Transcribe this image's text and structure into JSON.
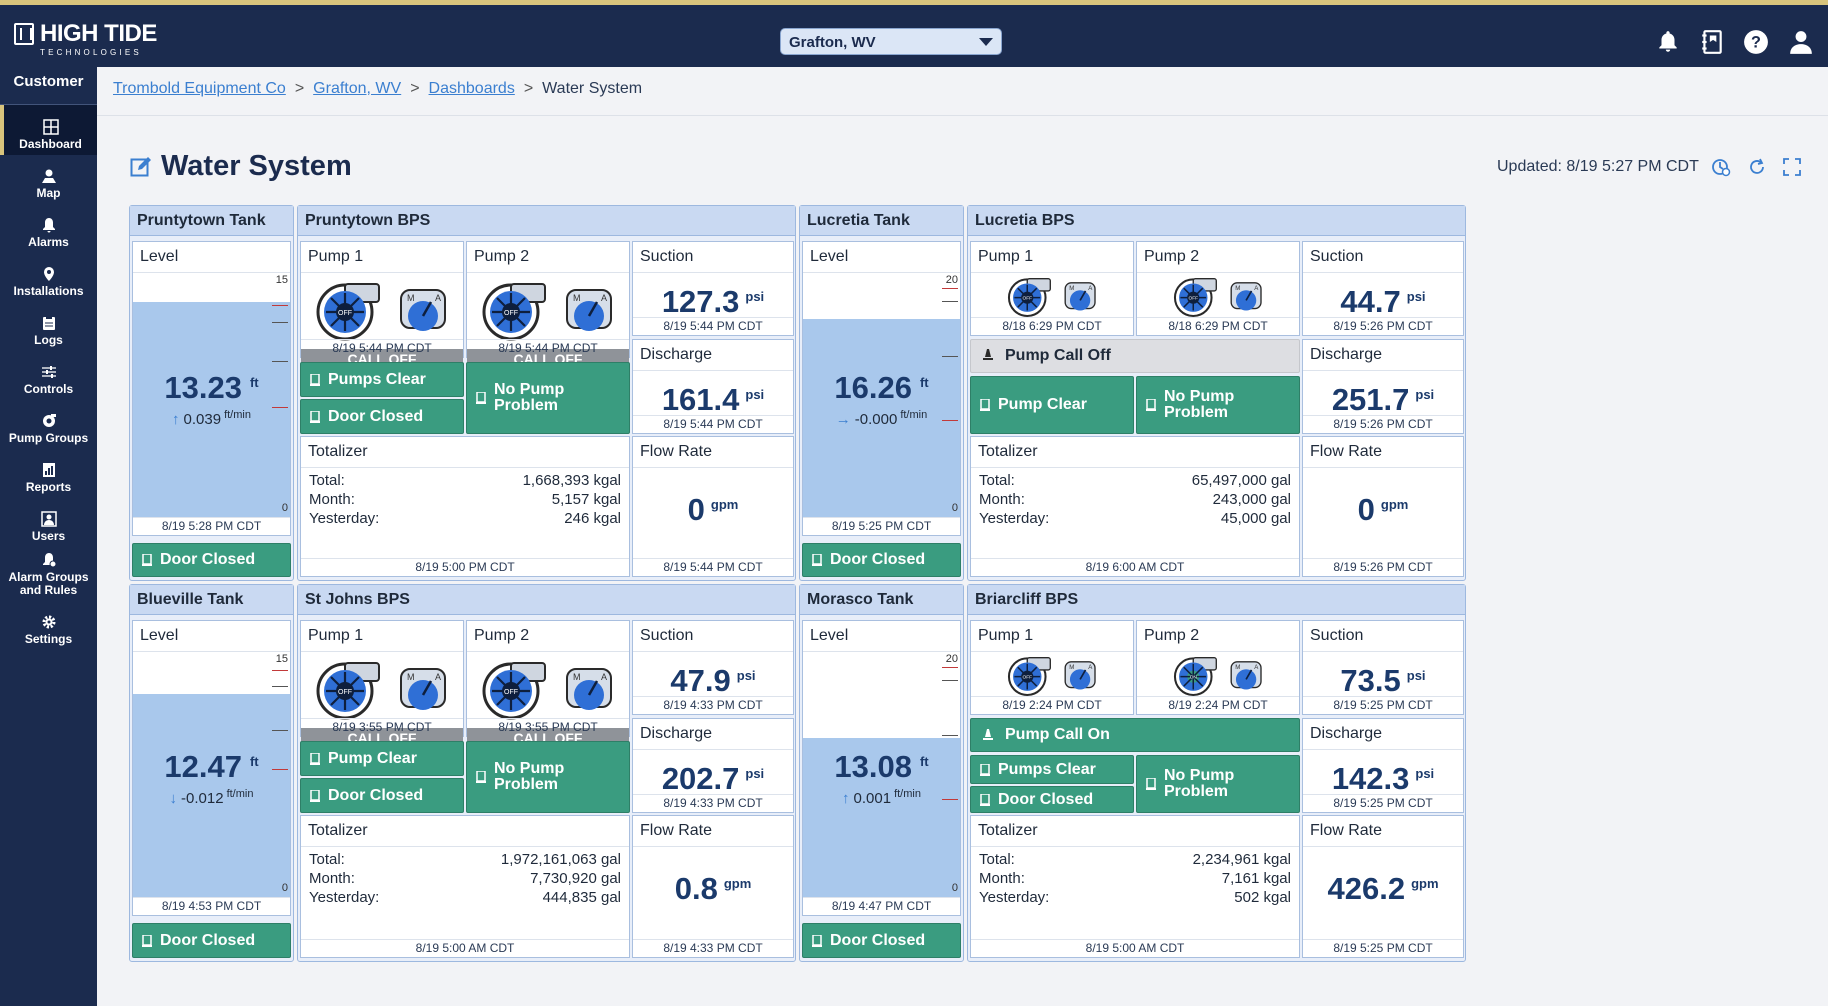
{
  "brand": {
    "name": "HIGH TIDE",
    "sub": "TECHNOLOGIES"
  },
  "location_select": {
    "value": "Grafton, WV"
  },
  "top_icons": [
    "bell-icon",
    "notebook-icon",
    "help-icon",
    "user-icon"
  ],
  "sidebar": {
    "heading": "Customer",
    "items": [
      {
        "label": "Dashboard",
        "icon": "dashboard-icon",
        "active": true
      },
      {
        "label": "Map",
        "icon": "map-icon"
      },
      {
        "label": "Alarms",
        "icon": "bell-icon"
      },
      {
        "label": "Installations",
        "icon": "pin-icon"
      },
      {
        "label": "Logs",
        "icon": "clipboard-icon"
      },
      {
        "label": "Controls",
        "icon": "sliders-icon"
      },
      {
        "label": "Pump Groups",
        "icon": "pump-group-icon"
      },
      {
        "label": "Reports",
        "icon": "report-icon"
      },
      {
        "label": "Users",
        "icon": "users-icon"
      },
      {
        "label": "Alarm Groups and Rules",
        "icon": "alarm-rules-icon"
      },
      {
        "label": "Settings",
        "icon": "gear-icon"
      }
    ]
  },
  "breadcrumb": [
    "Trombold Equipment Co",
    "Grafton, WV",
    "Dashboards",
    "Water System"
  ],
  "page": {
    "title": "Water System",
    "updated": "Updated: 8/19 5:27 PM CDT"
  },
  "labels": {
    "level": "Level",
    "pump1": "Pump 1",
    "pump2": "Pump 2",
    "suction": "Suction",
    "discharge": "Discharge",
    "totalizer": "Totalizer",
    "flow_rate": "Flow Rate",
    "total": "Total:",
    "month": "Month:",
    "yesterday": "Yesterday:",
    "call_off": "CALL OFF",
    "psi": "psi",
    "gpm": "gpm",
    "ft": "ft",
    "ftmin": "ft/min",
    "door_closed": "Door Closed"
  },
  "tanks": [
    {
      "name": "Pruntytown Tank",
      "value": "13.23",
      "rate": "0.039",
      "arrow": "↑",
      "ts": "8/19 5:28 PM CDT",
      "max": "15",
      "min": "0",
      "level_fraction": 0.88,
      "door": "Door Closed"
    },
    {
      "name": "Lucretia Tank",
      "value": "16.26",
      "rate": "-0.000",
      "arrow": "→",
      "ts": "8/19 5:25 PM CDT",
      "max": "20",
      "min": "0",
      "level_fraction": 0.81,
      "door": "Door Closed"
    },
    {
      "name": "Blueville Tank",
      "value": "12.47",
      "rate": "-0.012",
      "arrow": "↓",
      "ts": "8/19 4:53 PM CDT",
      "max": "15",
      "min": "0",
      "level_fraction": 0.83,
      "door": "Door Closed"
    },
    {
      "name": "Morasco Tank",
      "value": "13.08",
      "rate": "0.001",
      "arrow": "↑",
      "ts": "8/19 4:47 PM CDT",
      "max": "20",
      "min": "0",
      "level_fraction": 0.65,
      "door": "Door Closed"
    }
  ],
  "bps": [
    {
      "name": "Pruntytown BPS",
      "pump1": {
        "ts": "8/19 5:44 PM CDT",
        "state": "CALL OFF"
      },
      "pump2": {
        "ts": "8/19 5:44 PM CDT",
        "state": "CALL OFF"
      },
      "status_left": [
        "Pumps Clear",
        "Door Closed"
      ],
      "status_right": "No Pump Problem",
      "suction": {
        "value": "127.3",
        "ts": "8/19 5:44 PM CDT"
      },
      "discharge": {
        "value": "161.4",
        "ts": "8/19 5:44 PM CDT"
      },
      "flow": {
        "value": "0",
        "ts": "8/19 5:44 PM CDT"
      },
      "totalizer": {
        "total": "1,668,393 kgal",
        "month": "5,157 kgal",
        "yesterday": "246 kgal",
        "ts": "8/19 5:00 PM CDT"
      }
    },
    {
      "name": "Lucretia BPS",
      "pump1": {
        "ts": "8/18 6:29 PM CDT"
      },
      "pump2": {
        "ts": "8/18 6:29 PM CDT"
      },
      "call_status": "Pump Call Off",
      "status_left": [
        "Pump Clear"
      ],
      "status_right": "No Pump Problem",
      "suction": {
        "value": "44.7",
        "ts": "8/19 5:26 PM CDT"
      },
      "discharge": {
        "value": "251.7",
        "ts": "8/19 5:26 PM CDT"
      },
      "flow": {
        "value": "0",
        "ts": "8/19 5:26 PM CDT"
      },
      "totalizer": {
        "total": "65,497,000 gal",
        "month": "243,000 gal",
        "yesterday": "45,000 gal",
        "ts": "8/19 6:00 AM CDT"
      }
    },
    {
      "name": "St Johns BPS",
      "pump1": {
        "ts": "8/19 3:55 PM CDT",
        "state": "CALL OFF"
      },
      "pump2": {
        "ts": "8/19 3:55 PM CDT",
        "state": "CALL OFF"
      },
      "status_left": [
        "Pump Clear",
        "Door Closed"
      ],
      "status_right": "No Pump Problem",
      "suction": {
        "value": "47.9",
        "ts": "8/19 4:33 PM CDT"
      },
      "discharge": {
        "value": "202.7",
        "ts": "8/19 4:33 PM CDT"
      },
      "flow": {
        "value": "0.8",
        "ts": "8/19 4:33 PM CDT"
      },
      "totalizer": {
        "total": "1,972,161,063 gal",
        "month": "7,730,920 gal",
        "yesterday": "444,835 gal",
        "ts": "8/19 5:00 AM CDT"
      }
    },
    {
      "name": "Briarcliff BPS",
      "pump1": {
        "ts": "8/19 2:24 PM CDT"
      },
      "pump2": {
        "ts": "8/19 2:24 PM CDT"
      },
      "call_status": "Pump Call On",
      "status_left": [
        "Pumps Clear",
        "Door Closed"
      ],
      "status_right": "No Pump Problem",
      "suction": {
        "value": "73.5",
        "ts": "8/19 5:25 PM CDT"
      },
      "discharge": {
        "value": "142.3",
        "ts": "8/19 5:25 PM CDT"
      },
      "flow": {
        "value": "426.2",
        "ts": "8/19 5:25 PM CDT"
      },
      "totalizer": {
        "total": "2,234,961 kgal",
        "month": "7,161 kgal",
        "yesterday": "502 kgal",
        "ts": "8/19 5:00 AM CDT"
      }
    }
  ],
  "colors": {
    "navy": "#1b2b4e",
    "green": "#3a9c80",
    "tank_water": "#a9c8ec",
    "pump_blue": "#2f6fd6",
    "gold": "#d8c47c"
  }
}
